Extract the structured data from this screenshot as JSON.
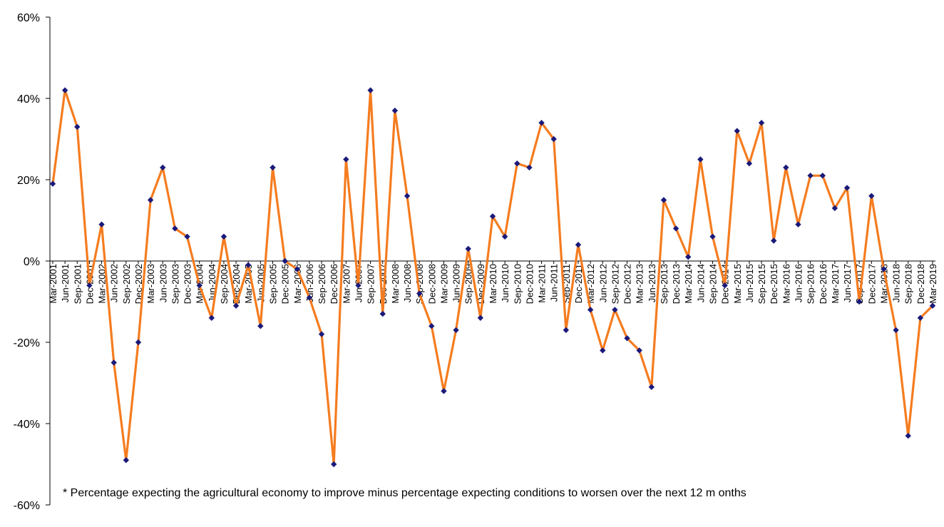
{
  "chart_data": {
    "type": "line",
    "title": "",
    "xlabel": "",
    "ylabel": "",
    "ylim": [
      -60,
      60
    ],
    "y_ticks": [
      60,
      40,
      20,
      0,
      -20,
      -40,
      -60
    ],
    "y_tick_labels": [
      "60%",
      "40%",
      "20%",
      "0%",
      "-20%",
      "-40%",
      "-60%"
    ],
    "grid": false,
    "legend": "none",
    "categories": [
      "Mar-2001",
      "Jun-2001",
      "Sep-2001",
      "Dec-2001",
      "Mar-2002",
      "Jun-2002",
      "Sep-2002",
      "Dec-2002",
      "Mar-2003",
      "Jun-2003",
      "Sep-2003",
      "Dec-2003",
      "Mar-2004",
      "Jun-2004",
      "Sep-2004",
      "Dec-2004",
      "Mar-2005",
      "Jun-2005",
      "Sep-2005",
      "Dec-2005",
      "Mar-2006",
      "Jun-2006",
      "Sep-2006",
      "Dec-2006",
      "Mar-2007",
      "Jun-2007",
      "Sep-2007",
      "Dec-2007",
      "Mar-2008",
      "Jun-2008",
      "Sep-2008",
      "Dec-2008",
      "Mar-2009",
      "Jun-2009",
      "Sep-2009",
      "Dec-2009",
      "Mar-2010",
      "Jun-2010",
      "Sep-2010",
      "Dec-2010",
      "Mar-2011",
      "Jun-2011",
      "Sep-2011",
      "Dec-2011",
      "Mar-2012",
      "Jun-2012",
      "Sep-2012",
      "Dec-2012",
      "Mar-2013",
      "Jun-2013",
      "Sep-2013",
      "Dec-2013",
      "Mar-2014",
      "Jun-2014",
      "Sep-2014",
      "Dec-2014",
      "Mar-2015",
      "Jun-2015",
      "Sep-2015",
      "Dec-2015",
      "Mar-2016",
      "Jun-2016",
      "Sep-2016",
      "Dec-2016",
      "Mar-2017",
      "Jun-2017",
      "Sep-2017",
      "Dec-2017",
      "Mar-2018",
      "Jun-2018",
      "Sep-2018",
      "Dec-2018",
      "Mar-2019"
    ],
    "categories_labeled": [
      "Mar-2001",
      "Jun-2001",
      "Sep-2001",
      "Dec-2001",
      "Mar-2002",
      "Jun-2002",
      "Sep-2002",
      "Dec-2002",
      "Mar-2003",
      "Jun-2003",
      "Sep-2003",
      "Dec-2003",
      "Mar-2004",
      "Jun-2004",
      "Sep-2004",
      "Dec-2004",
      "Mar-2005",
      "Jun-2005",
      "Sep-2005",
      "Dec-2005",
      "Mar-2006",
      "Jun-2006",
      "Sep-2006",
      "Dec-2006",
      "Mar-2007",
      "Jun-2007",
      "Sep-2007",
      "Dec-2007",
      "Mar-2008",
      "Jun-2008",
      "Sep-2008",
      "Dec-2008",
      "Mar-2009",
      "Jun-2009",
      "Sep-2009",
      "Dec-2009",
      "Mar-2010",
      "Jun-2010",
      "Sep-2010",
      "Dec-2010",
      "Mar-2011",
      "Jun-2011",
      "Sep-2011",
      "Dec-2011",
      "Mar-2012",
      "Jun-2012",
      "Sep-2012",
      "Dec-2012",
      "Mar-2013",
      "Jun-2013",
      "Sep-2013",
      "Dec-2013",
      "Mar-2014",
      "Jun-2014",
      "Sep-2014",
      "Dec-2014",
      "Mar-2015",
      "Jun-2015",
      "Sep-2015",
      "Dec-2015",
      "Mar-2016",
      "Jun-2016",
      "Sep-2016",
      "Dec-2016",
      "Mar-2017",
      "Jun-2017",
      "Sep-2017",
      "Dec-2017",
      "Mar-2018",
      "Jun-2018",
      "Sep-2018",
      "Dec-2018",
      "Mar-2019"
    ],
    "series": [
      {
        "values": [
          19,
          42,
          33,
          -6,
          9,
          -25,
          -49,
          -20,
          15,
          23,
          8,
          6,
          -6,
          -14,
          6,
          -11,
          -1,
          -16,
          23,
          0,
          -2,
          -9,
          -18,
          -50,
          25,
          -6,
          42,
          -13,
          37,
          16,
          -8,
          -16,
          -32,
          -17,
          3,
          -14,
          11,
          6,
          24,
          23,
          34,
          30,
          -17,
          4,
          -12,
          -22,
          -12,
          -19,
          -22,
          -31,
          15,
          8,
          1,
          25,
          6,
          -6,
          32,
          24,
          34,
          5,
          23,
          9,
          21,
          21,
          13,
          18,
          -10,
          16,
          -2,
          -17,
          -43,
          -14,
          -11
        ],
        "line_color": "#F57C1F",
        "marker_color": "#1A1A7A",
        "marker": "diamond"
      }
    ],
    "annotation": "* Percentage expecting the agricultural economy to improve minus percentage expecting conditions to worsen over the next 12 m onths"
  }
}
